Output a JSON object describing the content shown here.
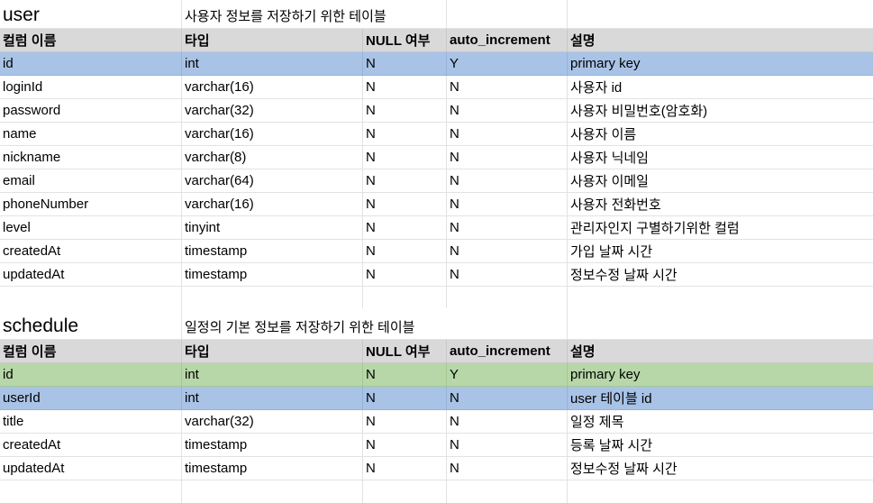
{
  "headers": [
    "컬럼 이름",
    "타입",
    "NULL 여부",
    "auto_increment",
    "설명"
  ],
  "user_table": {
    "name": "user",
    "description": "사용자 정보를 저장하기 위한 테이블",
    "rows": [
      [
        "id",
        "int",
        "N",
        "Y",
        "primary key"
      ],
      [
        "loginId",
        "varchar(16)",
        "N",
        "N",
        "사용자 id"
      ],
      [
        "password",
        "varchar(32)",
        "N",
        "N",
        "사용자 비밀번호(암호화)"
      ],
      [
        "name",
        "varchar(16)",
        "N",
        "N",
        "사용자 이름"
      ],
      [
        "nickname",
        "varchar(8)",
        "N",
        "N",
        "사용자 닉네임"
      ],
      [
        "email",
        "varchar(64)",
        "N",
        "N",
        "사용자 이메일"
      ],
      [
        "phoneNumber",
        "varchar(16)",
        "N",
        "N",
        "사용자 전화번호"
      ],
      [
        "level",
        "tinyint",
        "N",
        "N",
        "관리자인지 구별하기위한 컬럼"
      ],
      [
        "createdAt",
        "timestamp",
        "N",
        "N",
        "가입 날짜 시간"
      ],
      [
        "updatedAt",
        "timestamp",
        "N",
        "N",
        "정보수정 날짜 시간"
      ]
    ]
  },
  "schedule_table": {
    "name": "schedule",
    "description": "일정의 기본 정보를 저장하기 위한 테이블",
    "rows": [
      [
        "id",
        "int",
        "N",
        "Y",
        "primary key"
      ],
      [
        "userId",
        "int",
        "N",
        "N",
        "user 테이블 id"
      ],
      [
        "title",
        "varchar(32)",
        "N",
        "N",
        "일정 제목"
      ],
      [
        "createdAt",
        "timestamp",
        "N",
        "N",
        "등록 날짜 시간"
      ],
      [
        "updatedAt",
        "timestamp",
        "N",
        "N",
        "정보수정 날짜 시간"
      ]
    ]
  },
  "colors": {
    "header_bg": "#d9d9d9",
    "primary_key_blue": "#a8c3e6",
    "primary_key_green": "#b7d7a8",
    "gridline": "#e2e2e2"
  }
}
